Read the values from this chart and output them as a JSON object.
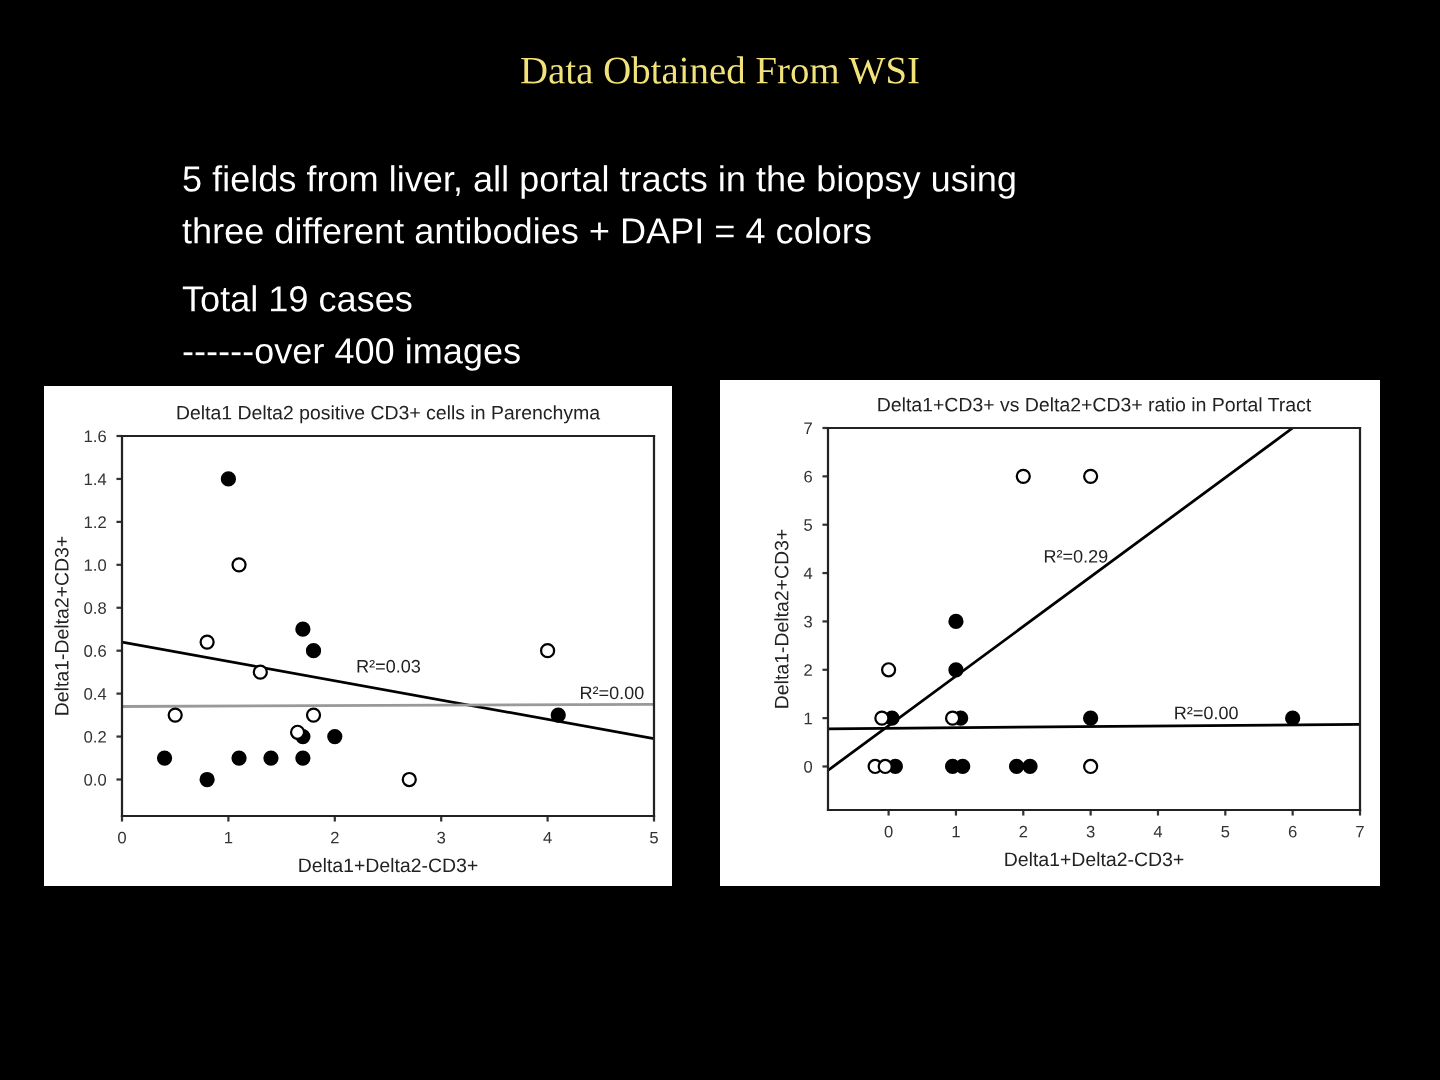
{
  "chart_data": [
    {
      "type": "other",
      "title": "Data Obtained From WSI",
      "annotations": [
        "5 fields from liver, all portal tracts in the biopsy using",
        "three different antibodies + DAPI = 4 colors",
        "Total 19 cases",
        "------over 400 images"
      ]
    },
    {
      "type": "scatter",
      "title": "Delta1 Delta2 positive CD3+ cells in Parenchyma",
      "xlabel": "Delta1+Delta2-CD3+",
      "ylabel": "Delta1-Delta2+CD3+",
      "xlim": [
        0,
        5
      ],
      "ylim": [
        -0.17,
        1.6
      ],
      "xticks": [
        0,
        1,
        2,
        3,
        4,
        5
      ],
      "yticks": [
        {
          "value": 0,
          "label": "0.0"
        },
        {
          "value": 0.2,
          "label": "0.2"
        },
        {
          "value": 0.4,
          "label": "0.4"
        },
        {
          "value": 0.6,
          "label": "0.6"
        },
        {
          "value": 0.8,
          "label": "0.8"
        },
        {
          "value": 1.0,
          "label": "1.0"
        },
        {
          "value": 1.2,
          "label": "1.2"
        },
        {
          "value": 1.4,
          "label": "1.4"
        },
        {
          "value": 1.6,
          "label": "1.6"
        }
      ],
      "grid": false,
      "legend": false,
      "series": [
        {
          "type": "scatter",
          "marker": "circle",
          "color": "#000000",
          "x": [
            1.0,
            1.7,
            1.8,
            4.1,
            1.7,
            2.0,
            0.4,
            1.1,
            1.4,
            1.7,
            0.8
          ],
          "values": [
            1.4,
            0.7,
            0.6,
            0.3,
            0.2,
            0.2,
            0.1,
            0.1,
            0.1,
            0.1,
            0.0
          ]
        },
        {
          "type": "scatter",
          "marker": "circle",
          "color": "#ffffff",
          "x": [
            1.1,
            0.8,
            1.3,
            4.0,
            0.5,
            1.8,
            1.65,
            2.7
          ],
          "values": [
            1.0,
            0.64,
            0.5,
            0.6,
            0.3,
            0.3,
            0.22,
            0.0
          ]
        },
        {
          "type": "line",
          "marker": "none",
          "color": "#000000",
          "x": [
            0,
            5
          ],
          "values": [
            0.64,
            0.19
          ]
        },
        {
          "type": "line",
          "marker": "none",
          "color": "#999999",
          "x": [
            0,
            5
          ],
          "values": [
            0.34,
            0.35
          ]
        }
      ],
      "annotations": [
        "R²=0.03",
        "R²=0.00"
      ]
    },
    {
      "type": "scatter",
      "title": "Delta1+CD3+ vs Delta2+CD3+ ratio in Portal Tract",
      "xlabel": "Delta1+Delta2-CD3+",
      "ylabel": "Delta1-Delta2+CD3+",
      "xlim": [
        -0.9,
        7
      ],
      "ylim": [
        -0.9,
        7
      ],
      "xticks": [
        0,
        1,
        2,
        3,
        4,
        5,
        6,
        7
      ],
      "yticks": [
        0,
        1,
        2,
        3,
        4,
        5,
        6,
        7
      ],
      "grid": false,
      "legend": false,
      "series": [
        {
          "type": "scatter",
          "marker": "circle",
          "color": "#000000",
          "x": [
            0.05,
            1.0,
            1.0,
            1.07,
            3.0,
            6.0,
            0.1,
            0.95,
            1.1,
            1.9,
            2.1
          ],
          "values": [
            1,
            3,
            2,
            1,
            1,
            1,
            0,
            0,
            0,
            0,
            0
          ]
        },
        {
          "type": "scatter",
          "marker": "circle",
          "color": "#ffffff",
          "x": [
            2.0,
            3.0,
            0.0,
            -0.1,
            0.95,
            -0.2,
            -0.05,
            3.0
          ],
          "values": [
            6,
            6,
            2,
            1,
            1,
            0,
            0,
            0
          ]
        },
        {
          "type": "line",
          "marker": "none",
          "color": "#000000",
          "x": [
            -0.89,
            6.0
          ],
          "values": [
            -0.07,
            7.0
          ]
        },
        {
          "type": "line",
          "marker": "none",
          "color": "#000000",
          "x": [
            -0.9,
            7
          ],
          "values": [
            0.78,
            0.87
          ]
        }
      ],
      "annotations": [
        "R²=0.29",
        "R²=0.00"
      ]
    }
  ]
}
